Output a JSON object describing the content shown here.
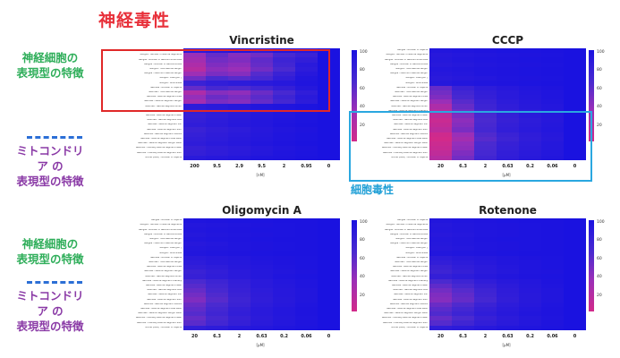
{
  "header": {
    "main_title": "神経毒性"
  },
  "side_labels": {
    "neuro_1": [
      "神経細胞の",
      "表現型の特徴"
    ],
    "mito_1": [
      "ミトコンドリ",
      "ア の",
      "表現型の特徴"
    ],
    "neuro_2": [
      "神経細胞の",
      "表現型の特徴"
    ],
    "mito_2": [
      "ミトコンドリ",
      "ア の",
      "表現型の特徴"
    ]
  },
  "annotations": {
    "cytotoxicity": "細胞毒性"
  },
  "colors": {
    "high": "#1a12e0",
    "mid": "#9a2fb8",
    "low": "#d22a8a",
    "neuro_text": "#2fae5a",
    "mito_text": "#8a3aa6",
    "title_text": "#e8303a",
    "box_red": "#e02828",
    "box_blue": "#2aa7e0",
    "dash": "#2c6fd6"
  },
  "chart_data": [
    {
      "type": "heatmap",
      "title": "Vincristine",
      "x_ticks": [
        "200",
        "9.5",
        "2.9",
        "9.5",
        "2",
        "0.95",
        "0"
      ],
      "unit": "[nM]",
      "colorbar_ticks": [
        "100",
        "80",
        "60",
        "40",
        "20"
      ],
      "color_range": [
        10,
        100
      ],
      "n_rows": 24,
      "row_labels": [
        "Ganglia - Number of Objects",
        "Ganglia - Number of Neurite Segments",
        "Ganglia - Number of Neurite Extremities",
        "Ganglia - Number of Neurite Nodes",
        "Ganglia - Total Neurite Length",
        "Ganglia - Maximum Neurite Length",
        "Ganglia - Area [µm²]",
        "Ganglia - Roundness",
        "Neurites - Number of Objects",
        "Neurites - Total Neurite Length",
        "Neurites - Neurite Segment Area",
        "Neurites - Neurite Segment Length",
        "Neurites - Neurite Segment Width",
        "Neurites - Neurite Segment Intensity",
        "Neurites - Neurite Segment Mean",
        "Neurites - Neurite Segment Max",
        "Neurites - Neurite Segment Min",
        "Neurites - Neurite Segment Sum",
        "Neurites - Neurite Segment StdDev",
        "Neurites - Neurite Segment Area Ratio",
        "Neurites - Neurite Segment Length Ratio",
        "Neurites - Intensity Neurite Segment Mean",
        "Neurites - Intensity Neurite Segment Sum",
        "Nuclei (DAPI) - Number of Objects"
      ],
      "rows": [
        [
          90,
          92,
          95,
          88,
          94,
          92,
          100
        ],
        [
          40,
          60,
          48,
          55,
          72,
          80,
          100
        ],
        [
          35,
          55,
          50,
          62,
          78,
          85,
          100
        ],
        [
          30,
          50,
          45,
          60,
          75,
          90,
          100
        ],
        [
          25,
          45,
          40,
          55,
          70,
          88,
          100
        ],
        [
          38,
          52,
          48,
          66,
          80,
          92,
          100
        ],
        [
          55,
          70,
          65,
          72,
          85,
          95,
          100
        ],
        [
          80,
          85,
          88,
          90,
          92,
          96,
          100
        ],
        [
          60,
          72,
          68,
          75,
          84,
          93,
          100
        ],
        [
          30,
          48,
          44,
          58,
          72,
          86,
          100
        ],
        [
          42,
          58,
          52,
          64,
          78,
          90,
          100
        ],
        [
          35,
          52,
          48,
          60,
          74,
          88,
          100
        ],
        [
          88,
          90,
          92,
          95,
          96,
          98,
          100
        ],
        [
          85,
          88,
          90,
          92,
          95,
          97,
          100
        ],
        [
          82,
          86,
          90,
          93,
          95,
          98,
          100
        ],
        [
          84,
          88,
          91,
          94,
          96,
          98,
          100
        ],
        [
          86,
          89,
          92,
          94,
          97,
          99,
          100
        ],
        [
          80,
          85,
          88,
          92,
          95,
          97,
          100
        ],
        [
          83,
          87,
          90,
          93,
          96,
          98,
          100
        ],
        [
          85,
          88,
          91,
          94,
          96,
          98,
          100
        ],
        [
          87,
          90,
          92,
          95,
          97,
          99,
          100
        ],
        [
          82,
          86,
          89,
          92,
          95,
          97,
          100
        ],
        [
          84,
          87,
          90,
          93,
          96,
          98,
          100
        ],
        [
          90,
          92,
          94,
          96,
          97,
          99,
          100
        ]
      ]
    },
    {
      "type": "heatmap",
      "title": "CCCP",
      "x_ticks": [
        "20",
        "6.3",
        "2",
        "0.63",
        "0.2",
        "0.06",
        "0"
      ],
      "unit": "[µM]",
      "colorbar_ticks": [
        "100",
        "80",
        "60",
        "40",
        "20"
      ],
      "color_range": [
        10,
        100
      ],
      "n_rows": 24,
      "row_labels": [
        "Ganglia - Number of Objects",
        "Ganglia - Number of Neurite Segments",
        "Ganglia - Number of Neurite Extremities",
        "Ganglia - Number of Neurite Nodes",
        "Ganglia - Total Neurite Length",
        "Ganglia - Maximum Neurite Length",
        "Ganglia - Area [µm²]",
        "Ganglia - Roundness",
        "Neurites - Number of Objects",
        "Neurites - Total Neurite Length",
        "Neurites - Neurite Segment Area",
        "Neurites - Neurite Segment Length",
        "Neurites - Neurite Segment Width",
        "Neurites - Neurite Segment Intensity",
        "Neurites - Neurite Segment Mean",
        "Neurites - Neurite Segment Max",
        "Neurites - Neurite Segment Min",
        "Neurites - Neurite Segment Sum",
        "Neurites - Neurite Segment StdDev",
        "Neurites - Neurite Segment Area Ratio",
        "Neurites - Neurite Segment Length Ratio",
        "Neurites - Intensity Neurite Segment Mean",
        "Neurites - Intensity Neurite Segment Sum",
        "Nuclei (DAPI) - Number of Objects"
      ],
      "rows": [
        [
          95,
          96,
          97,
          98,
          98,
          99,
          100
        ],
        [
          92,
          94,
          95,
          96,
          97,
          98,
          100
        ],
        [
          93,
          95,
          96,
          97,
          98,
          99,
          100
        ],
        [
          91,
          93,
          95,
          96,
          97,
          98,
          100
        ],
        [
          94,
          95,
          96,
          97,
          98,
          99,
          100
        ],
        [
          92,
          94,
          96,
          97,
          98,
          99,
          100
        ],
        [
          90,
          92,
          94,
          96,
          97,
          98,
          100
        ],
        [
          93,
          95,
          96,
          97,
          98,
          99,
          100
        ],
        [
          60,
          80,
          88,
          92,
          95,
          97,
          100
        ],
        [
          55,
          75,
          85,
          90,
          94,
          96,
          100
        ],
        [
          50,
          72,
          84,
          90,
          93,
          96,
          100
        ],
        [
          40,
          65,
          80,
          88,
          92,
          95,
          100
        ],
        [
          30,
          60,
          78,
          86,
          91,
          94,
          100
        ],
        [
          25,
          55,
          75,
          85,
          90,
          94,
          100
        ],
        [
          20,
          50,
          72,
          84,
          90,
          93,
          100
        ],
        [
          15,
          45,
          70,
          82,
          88,
          92,
          100
        ],
        [
          18,
          48,
          72,
          84,
          89,
          93,
          100
        ],
        [
          22,
          52,
          74,
          85,
          90,
          94,
          100
        ],
        [
          12,
          40,
          68,
          80,
          87,
          92,
          100
        ],
        [
          10,
          35,
          65,
          78,
          86,
          91,
          100
        ],
        [
          14,
          42,
          70,
          82,
          88,
          93,
          100
        ],
        [
          16,
          44,
          71,
          83,
          89,
          93,
          100
        ],
        [
          20,
          50,
          73,
          85,
          90,
          94,
          100
        ],
        [
          25,
          55,
          76,
          86,
          91,
          95,
          100
        ]
      ]
    },
    {
      "type": "heatmap",
      "title": "Oligomycin A",
      "x_ticks": [
        "20",
        "6.3",
        "2",
        "0.63",
        "0.2",
        "0.06",
        "0"
      ],
      "unit": "[µM]",
      "colorbar_ticks": [
        "100",
        "80",
        "60",
        "40",
        "20"
      ],
      "color_range": [
        10,
        100
      ],
      "n_rows": 24,
      "row_labels": [
        "Ganglia - Number of Objects",
        "Ganglia - Number of Neurite Segments",
        "Ganglia - Number of Neurite Extremities",
        "Ganglia - Number of Neurite Nodes",
        "Ganglia - Total Neurite Length",
        "Ganglia - Maximum Neurite Length",
        "Ganglia - Area [µm²]",
        "Ganglia - Roundness",
        "Neurites - Number of Objects",
        "Neurites - Total Neurite Length",
        "Neurites - Neurite Segment Area",
        "Neurites - Neurite Segment Length",
        "Neurites - Neurite Segment Width",
        "Neurites - Neurite Segment Intensity",
        "Neurites - Neurite Segment Mean",
        "Neurites - Neurite Segment Max",
        "Neurites - Neurite Segment Min",
        "Neurites - Neurite Segment Sum",
        "Neurites - Neurite Segment StdDev",
        "Neurites - Neurite Segment Area Ratio",
        "Neurites - Neurite Segment Length Ratio",
        "Neurites - Intensity Neurite Segment Mean",
        "Neurites - Intensity Neurite Segment Sum",
        "Nuclei (DAPI) - Number of Objects"
      ],
      "rows": [
        [
          96,
          97,
          98,
          98,
          99,
          99,
          100
        ],
        [
          94,
          95,
          96,
          97,
          98,
          99,
          100
        ],
        [
          95,
          96,
          97,
          98,
          98,
          99,
          100
        ],
        [
          93,
          95,
          96,
          97,
          98,
          99,
          100
        ],
        [
          95,
          96,
          97,
          98,
          99,
          99,
          100
        ],
        [
          92,
          94,
          96,
          97,
          98,
          99,
          100
        ],
        [
          94,
          95,
          96,
          97,
          98,
          99,
          100
        ],
        [
          95,
          96,
          97,
          98,
          99,
          99,
          100
        ],
        [
          90,
          92,
          94,
          96,
          97,
          98,
          100
        ],
        [
          88,
          91,
          93,
          95,
          97,
          98,
          100
        ],
        [
          85,
          88,
          92,
          94,
          96,
          98,
          100
        ],
        [
          80,
          85,
          90,
          93,
          95,
          97,
          100
        ],
        [
          82,
          86,
          90,
          93,
          96,
          98,
          100
        ],
        [
          70,
          78,
          85,
          90,
          94,
          96,
          100
        ],
        [
          65,
          75,
          84,
          90,
          93,
          96,
          100
        ],
        [
          60,
          72,
          82,
          88,
          92,
          95,
          100
        ],
        [
          55,
          68,
          80,
          87,
          92,
          95,
          100
        ],
        [
          50,
          65,
          78,
          86,
          91,
          95,
          100
        ],
        [
          58,
          70,
          80,
          88,
          92,
          96,
          100
        ],
        [
          62,
          74,
          84,
          90,
          94,
          97,
          100
        ],
        [
          66,
          76,
          85,
          90,
          94,
          97,
          100
        ],
        [
          60,
          72,
          82,
          89,
          93,
          96,
          100
        ],
        [
          64,
          75,
          84,
          90,
          94,
          97,
          100
        ],
        [
          85,
          88,
          92,
          94,
          96,
          98,
          100
        ]
      ]
    },
    {
      "type": "heatmap",
      "title": "Rotenone",
      "x_ticks": [
        "20",
        "6.3",
        "2",
        "0.63",
        "0.2",
        "0.06",
        "0"
      ],
      "unit": "[µM]",
      "colorbar_ticks": [
        "100",
        "80",
        "60",
        "40",
        "20"
      ],
      "color_range": [
        10,
        100
      ],
      "n_rows": 24,
      "row_labels": [
        "Ganglia - Number of Objects",
        "Ganglia - Number of Neurite Segments",
        "Ganglia - Number of Neurite Extremities",
        "Ganglia - Number of Neurite Nodes",
        "Ganglia - Total Neurite Length",
        "Ganglia - Maximum Neurite Length",
        "Ganglia - Area [µm²]",
        "Ganglia - Roundness",
        "Neurites - Number of Objects",
        "Neurites - Total Neurite Length",
        "Neurites - Neurite Segment Area",
        "Neurites - Neurite Segment Length",
        "Neurites - Neurite Segment Width",
        "Neurites - Neurite Segment Intensity",
        "Neurites - Neurite Segment Mean",
        "Neurites - Neurite Segment Max",
        "Neurites - Neurite Segment Min",
        "Neurites - Neurite Segment Sum",
        "Neurites - Neurite Segment StdDev",
        "Neurites - Neurite Segment Area Ratio",
        "Neurites - Neurite Segment Length Ratio",
        "Neurites - Intensity Neurite Segment Mean",
        "Neurites - Intensity Neurite Segment Sum",
        "Nuclei (DAPI) - Number of Objects"
      ],
      "rows": [
        [
          95,
          96,
          97,
          98,
          99,
          99,
          100
        ],
        [
          93,
          95,
          96,
          97,
          98,
          99,
          100
        ],
        [
          94,
          95,
          96,
          97,
          98,
          99,
          100
        ],
        [
          92,
          94,
          96,
          97,
          98,
          99,
          100
        ],
        [
          94,
          95,
          97,
          98,
          98,
          99,
          100
        ],
        [
          93,
          95,
          96,
          97,
          98,
          99,
          100
        ],
        [
          92,
          94,
          96,
          97,
          98,
          99,
          100
        ],
        [
          95,
          96,
          97,
          98,
          99,
          99,
          100
        ],
        [
          88,
          91,
          93,
          95,
          97,
          98,
          100
        ],
        [
          85,
          89,
          92,
          95,
          96,
          98,
          100
        ],
        [
          80,
          86,
          90,
          94,
          96,
          98,
          100
        ],
        [
          78,
          84,
          90,
          93,
          96,
          97,
          100
        ],
        [
          84,
          88,
          92,
          95,
          97,
          98,
          100
        ],
        [
          70,
          78,
          86,
          91,
          94,
          97,
          100
        ],
        [
          62,
          72,
          82,
          89,
          93,
          96,
          100
        ],
        [
          55,
          66,
          78,
          87,
          92,
          95,
          100
        ],
        [
          50,
          62,
          76,
          86,
          91,
          95,
          100
        ],
        [
          48,
          60,
          74,
          85,
          91,
          95,
          100
        ],
        [
          58,
          68,
          80,
          88,
          92,
          96,
          100
        ],
        [
          64,
          74,
          84,
          90,
          94,
          97,
          100
        ],
        [
          68,
          78,
          86,
          91,
          95,
          97,
          100
        ],
        [
          60,
          70,
          82,
          89,
          93,
          96,
          100
        ],
        [
          66,
          76,
          85,
          90,
          94,
          97,
          100
        ],
        [
          86,
          89,
          92,
          95,
          96,
          98,
          100
        ]
      ]
    }
  ]
}
